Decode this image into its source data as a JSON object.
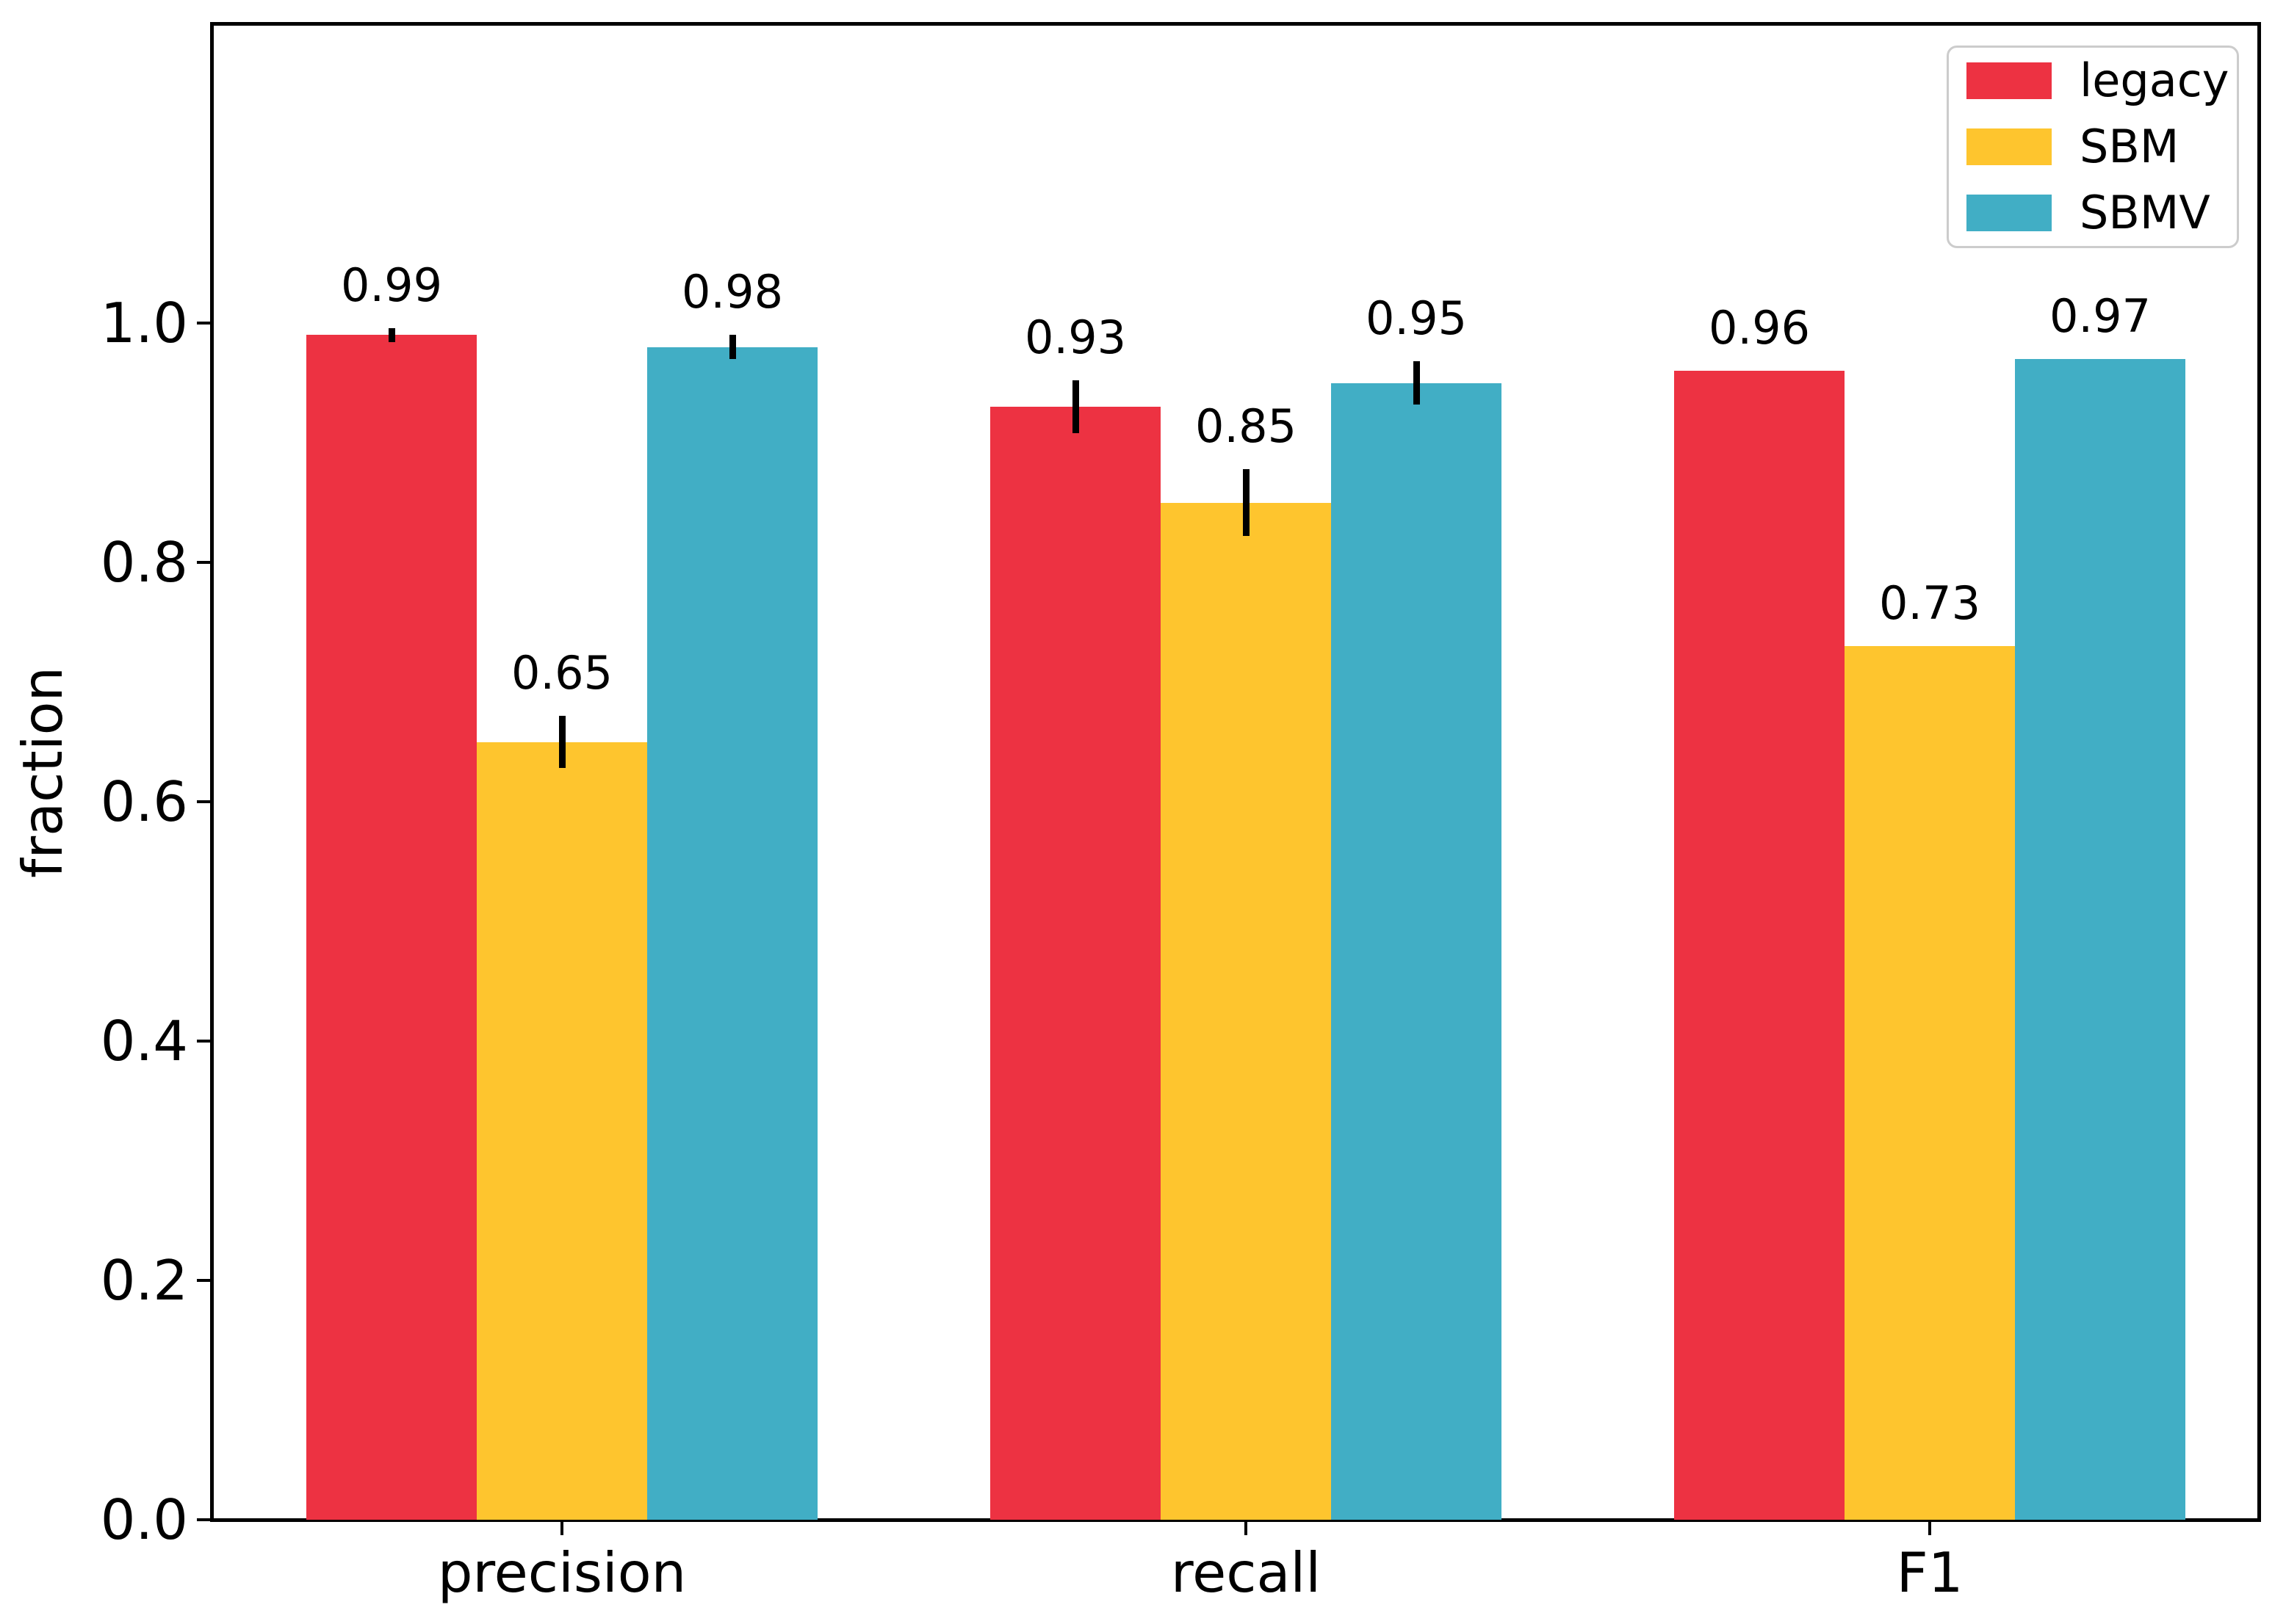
{
  "figure": {
    "background": "#ffffff",
    "text_color": "#000000",
    "legend_border_color": "#cccccc"
  },
  "chart_data": {
    "type": "bar",
    "title": "",
    "xlabel": "",
    "ylabel": "fraction",
    "categories": [
      "precision",
      "recall",
      "F1"
    ],
    "series": [
      {
        "name": "legacy",
        "color": "#ED3242",
        "values": [
          0.99,
          0.93,
          0.96
        ],
        "errors": [
          0.006,
          0.022,
          0
        ],
        "labels": [
          "0.99",
          "0.93",
          "0.96"
        ]
      },
      {
        "name": "SBM",
        "color": "#FEC52E",
        "values": [
          0.65,
          0.85,
          0.73
        ],
        "errors": [
          0.022,
          0.028,
          0
        ],
        "labels": [
          "0.65",
          "0.85",
          "0.73"
        ]
      },
      {
        "name": "SBMV",
        "color": "#41AEC5",
        "values": [
          0.98,
          0.95,
          0.97
        ],
        "errors": [
          0.01,
          0.018,
          0
        ],
        "labels": [
          "0.98",
          "0.95",
          "0.97"
        ]
      }
    ],
    "ylim": [
      0,
      1.25
    ],
    "yticks": [
      0.0,
      0.2,
      0.4,
      0.6,
      0.8,
      1.0
    ],
    "ytick_labels": [
      "0.0",
      "0.2",
      "0.4",
      "0.6",
      "0.8",
      "1.0"
    ],
    "grid": false,
    "error_bar_color": "#000000",
    "legend": {
      "position": "upper right",
      "entries": [
        "legacy",
        "SBM",
        "SBMV"
      ]
    }
  }
}
